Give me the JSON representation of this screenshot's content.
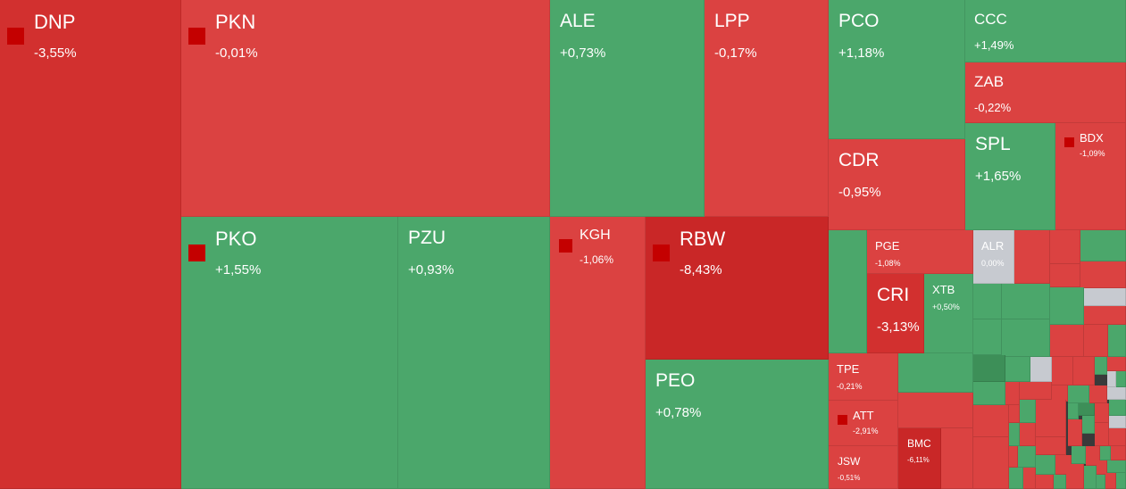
{
  "chart_data": {
    "type": "treemap",
    "colors": {
      "up": "#4ba76b",
      "down": "#db4241",
      "down_strong": "#d2302f",
      "down_extreme": "#c92727",
      "flat": "#c7cad0",
      "marker": "#c40000"
    },
    "tiles": [
      {
        "ticker": "DNP",
        "change": "-3,55%",
        "value": -3.55
      },
      {
        "ticker": "PKN",
        "change": "-0,01%",
        "value": -0.01
      },
      {
        "ticker": "ALE",
        "change": "+0,73%",
        "value": 0.73
      },
      {
        "ticker": "LPP",
        "change": "-0,17%",
        "value": -0.17
      },
      {
        "ticker": "PCO",
        "change": "+1,18%",
        "value": 1.18
      },
      {
        "ticker": "CCC",
        "change": "+1,49%",
        "value": 1.49
      },
      {
        "ticker": "ZAB",
        "change": "-0,22%",
        "value": -0.22
      },
      {
        "ticker": "CDR",
        "change": "-0,95%",
        "value": -0.95
      },
      {
        "ticker": "SPL",
        "change": "+1,65%",
        "value": 1.65
      },
      {
        "ticker": "BDX",
        "change": "-1,09%",
        "value": -1.09
      },
      {
        "ticker": "PKO",
        "change": "+1,55%",
        "value": 1.55
      },
      {
        "ticker": "PZU",
        "change": "+0,93%",
        "value": 0.93
      },
      {
        "ticker": "KGH",
        "change": "-1,06%",
        "value": -1.06
      },
      {
        "ticker": "RBW",
        "change": "-8,43%",
        "value": -8.43
      },
      {
        "ticker": "PEO",
        "change": "+0,78%",
        "value": 0.78
      },
      {
        "ticker": "PGE",
        "change": "-1,08%",
        "value": -1.08
      },
      {
        "ticker": "ALR",
        "change": "0,00%",
        "value": 0.0
      },
      {
        "ticker": "CRI",
        "change": "-3,13%",
        "value": -3.13
      },
      {
        "ticker": "XTB",
        "change": "+0,50%",
        "value": 0.5
      },
      {
        "ticker": "TPE",
        "change": "-0,21%",
        "value": -0.21
      },
      {
        "ticker": "ATT",
        "change": "-2,91%",
        "value": -2.91
      },
      {
        "ticker": "BMC",
        "change": "-6,11%",
        "value": -6.11
      },
      {
        "ticker": "JSW",
        "change": "-0,51%",
        "value": -0.51
      }
    ]
  }
}
